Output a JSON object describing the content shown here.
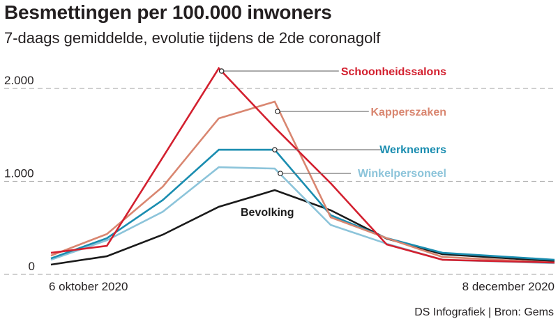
{
  "header": {
    "title": "Besmettingen per 100.000 inwoners",
    "subtitle": "7-daags gemiddelde, evolutie tijdens de 2de coronagolf"
  },
  "footer": {
    "source": "DS Infografiek | Bron: Gems"
  },
  "chart_data": {
    "type": "line",
    "title": "Besmettingen per 100.000 inwoners",
    "subtitle": "7-daags gemiddelde, evolutie tijdens de 2de coronagolf",
    "xlabel": "",
    "ylabel": "",
    "x_tick_labels": [
      "6 oktober 2020",
      "8 december 2020"
    ],
    "y_ticks": [
      0,
      1000,
      2000
    ],
    "y_tick_labels": [
      "0",
      "1.000",
      "2.000"
    ],
    "ylim": [
      0,
      2300
    ],
    "grid": "horizontal-dashed",
    "x": [
      0,
      1,
      2,
      3,
      4,
      5,
      6,
      7,
      9
    ],
    "series": [
      {
        "name": "Bevolking",
        "color": "#1a1a1a",
        "label_position": "inline",
        "values": [
          105,
          195,
          427,
          727,
          906,
          690,
          385,
          217,
          142
        ]
      },
      {
        "name": "Winkelpersoneel",
        "color": "#8cc4da",
        "label_position": "right",
        "values": [
          157,
          367,
          674,
          1153,
          1138,
          532,
          330,
          157,
          120
        ]
      },
      {
        "name": "Werknemers",
        "color": "#1a8db0",
        "label_position": "right",
        "values": [
          172,
          389,
          800,
          1340,
          1340,
          637,
          390,
          232,
          157
        ]
      },
      {
        "name": "Kapperszaken",
        "color": "#d98670",
        "label_position": "right",
        "values": [
          202,
          434,
          944,
          1678,
          1858,
          614,
          390,
          187,
          127
        ]
      },
      {
        "name": "Schoonheidssalons",
        "color": "#d3202f",
        "label_position": "right",
        "values": [
          232,
          307,
          1260,
          2217,
          1580,
          980,
          322,
          157,
          127
        ]
      }
    ]
  }
}
